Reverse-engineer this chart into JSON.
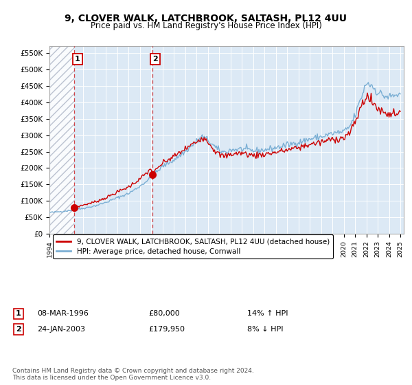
{
  "title": "9, CLOVER WALK, LATCHBROOK, SALTASH, PL12 4UU",
  "subtitle": "Price paid vs. HM Land Registry's House Price Index (HPI)",
  "xlim": [
    1994.0,
    2025.3
  ],
  "ylim": [
    0,
    570000
  ],
  "yticks": [
    0,
    50000,
    100000,
    150000,
    200000,
    250000,
    300000,
    350000,
    400000,
    450000,
    500000,
    550000
  ],
  "ytick_labels": [
    "£0",
    "£50K",
    "£100K",
    "£150K",
    "£200K",
    "£250K",
    "£300K",
    "£350K",
    "£400K",
    "£450K",
    "£500K",
    "£550K"
  ],
  "sale1_date": 1996.18,
  "sale1_price": 80000,
  "sale2_date": 2003.07,
  "sale2_price": 179950,
  "hpi_line_color": "#7bafd4",
  "price_line_color": "#cc0000",
  "marker_color": "#cc0000",
  "dashed_line_color": "#cc0000",
  "legend_label1": "9, CLOVER WALK, LATCHBROOK, SALTASH, PL12 4UU (detached house)",
  "legend_label2": "HPI: Average price, detached house, Cornwall",
  "table_row1": [
    "1",
    "08-MAR-1996",
    "£80,000",
    "14% ↑ HPI"
  ],
  "table_row2": [
    "2",
    "24-JAN-2003",
    "£179,950",
    "8% ↓ HPI"
  ],
  "footer": "Contains HM Land Registry data © Crown copyright and database right 2024.\nThis data is licensed under the Open Government Licence v3.0.",
  "plot_bg_color": "#dce9f5",
  "between_sales_color": "#dce9f5",
  "hatch_bg_color": "#ffffff"
}
